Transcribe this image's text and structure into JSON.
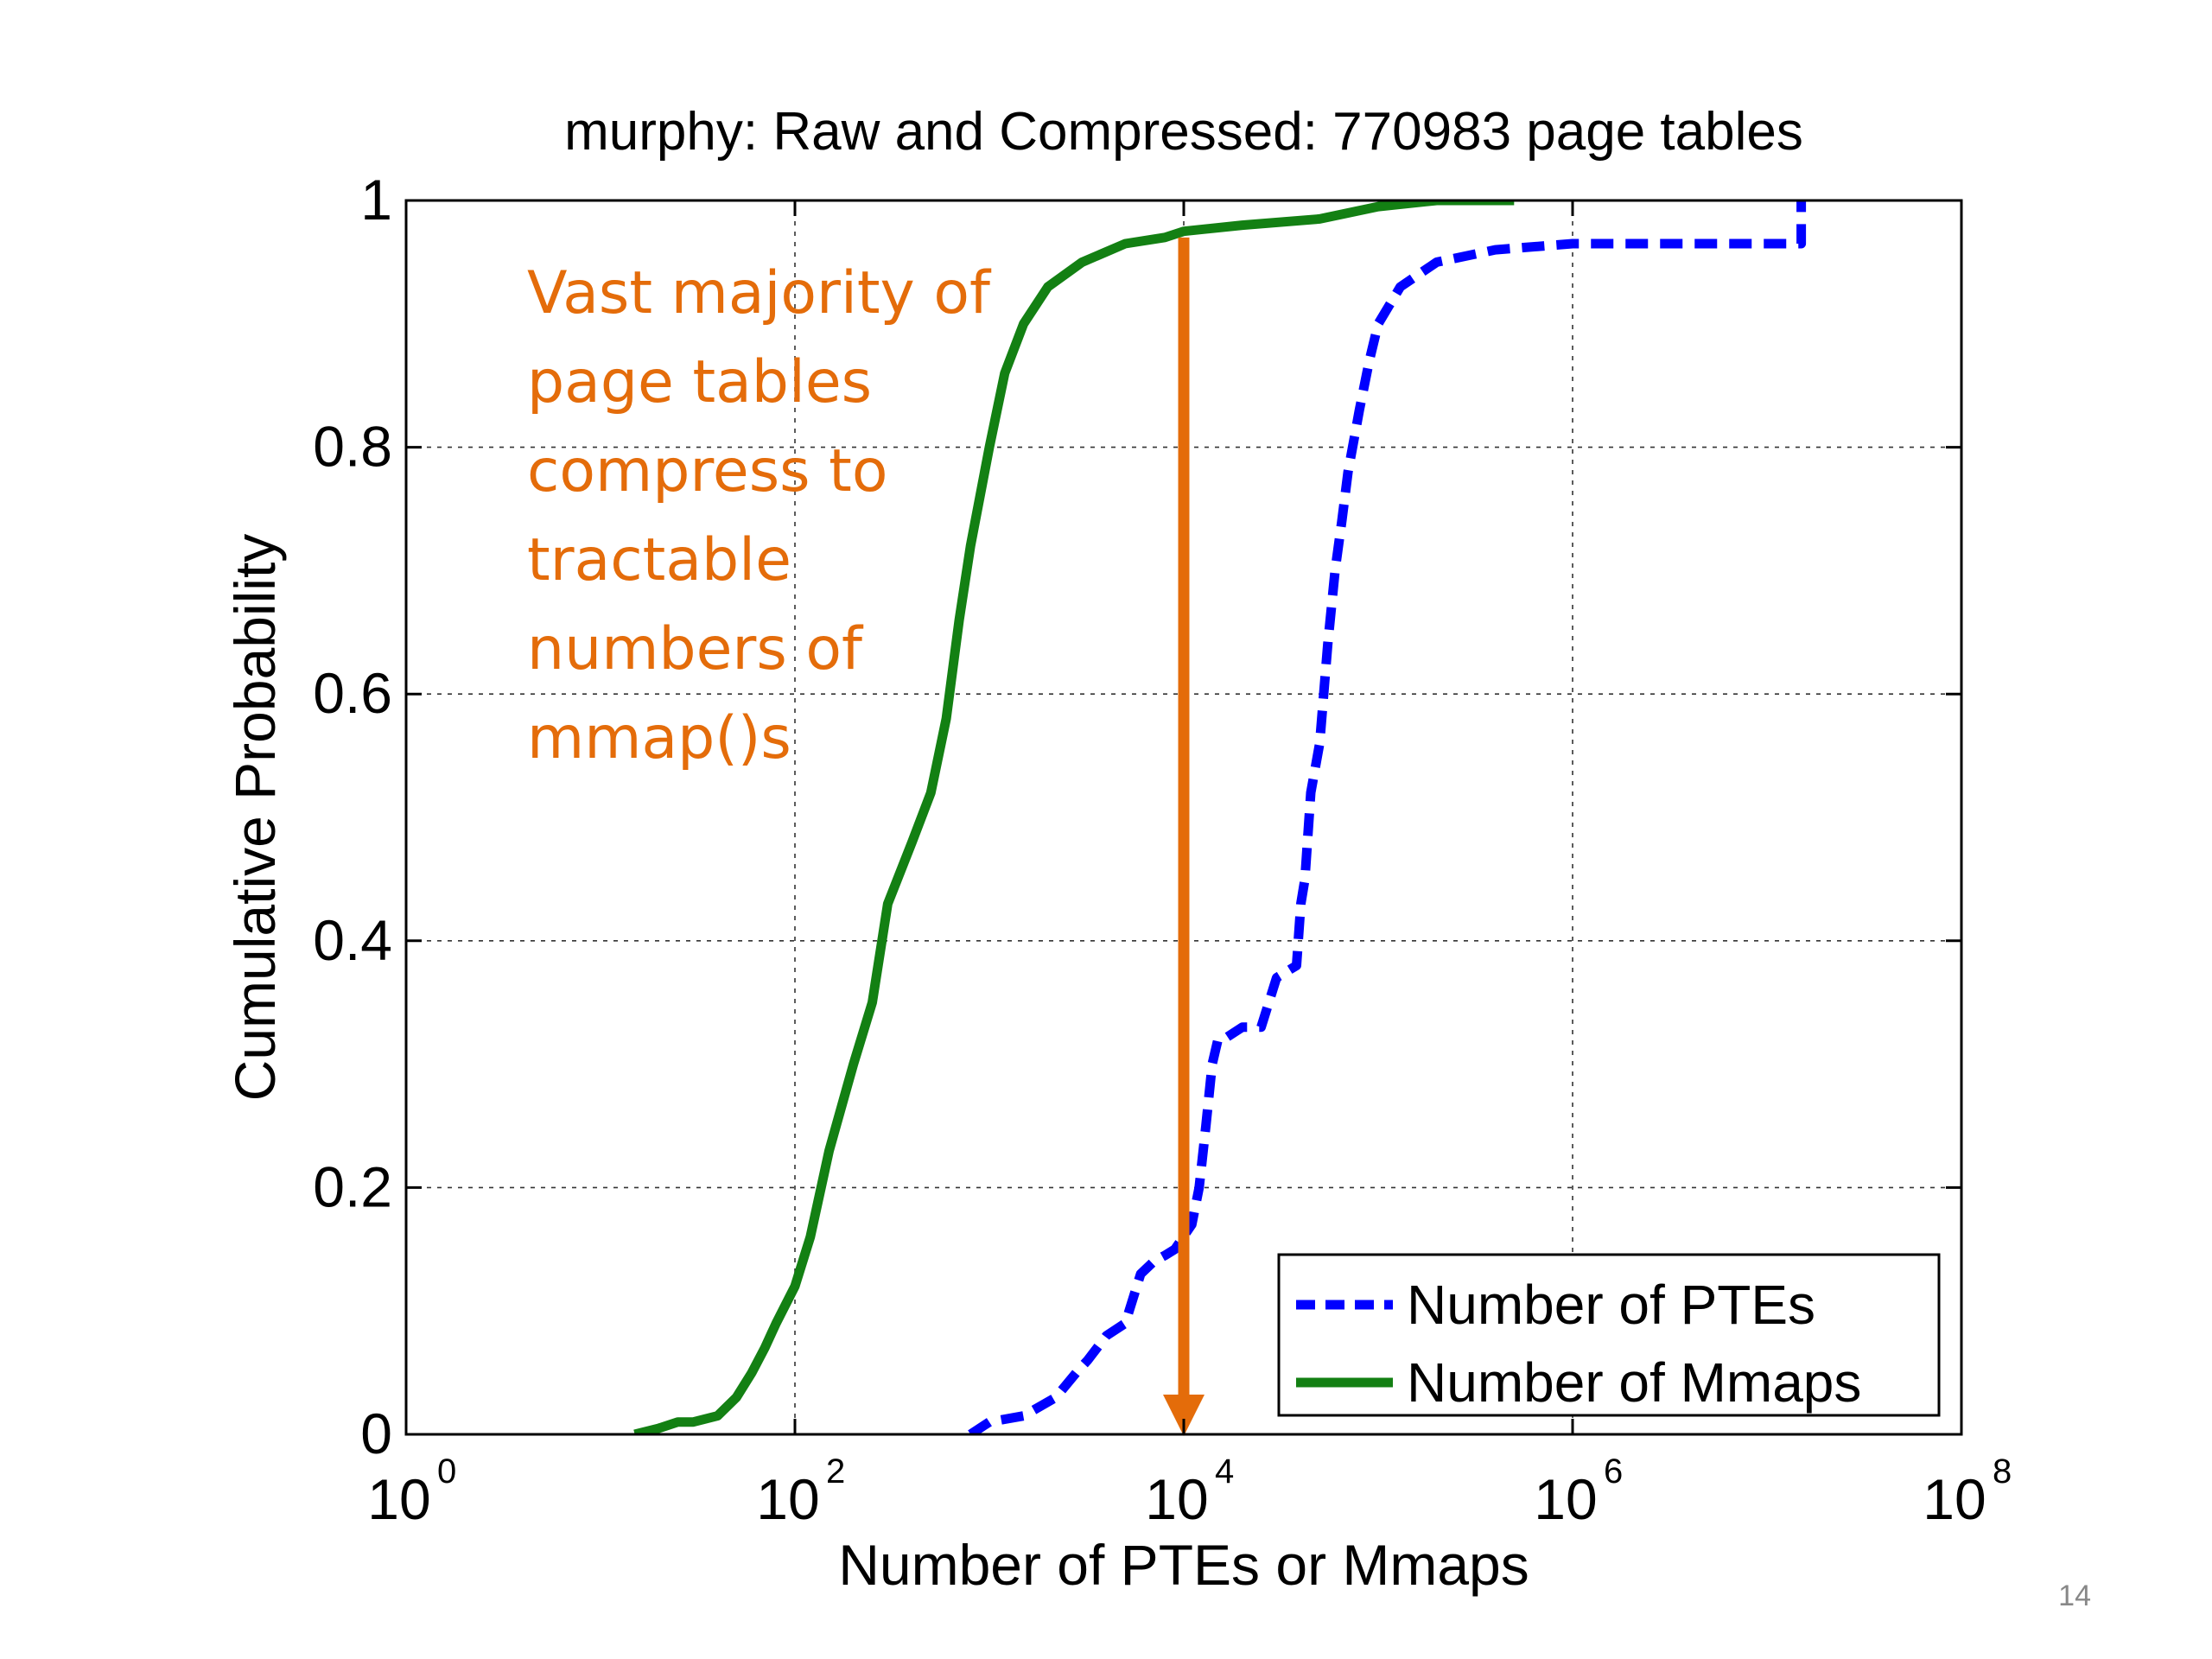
{
  "chart_data": {
    "type": "line",
    "title": "murphy: Raw and Compressed: 770983 page tables",
    "xlabel": "Number of PTEs or Mmaps",
    "ylabel": "Cumulative Probability",
    "x_scale": "log",
    "xlim": [
      1,
      100000000
    ],
    "ylim": [
      0,
      1
    ],
    "grid": true,
    "legend_position": "bottom-right",
    "x_ticks": [
      {
        "base": "10",
        "exp": "0"
      },
      {
        "base": "10",
        "exp": "2"
      },
      {
        "base": "10",
        "exp": "4"
      },
      {
        "base": "10",
        "exp": "6"
      },
      {
        "base": "10",
        "exp": "8"
      }
    ],
    "y_ticks": [
      "0",
      "0.2",
      "0.4",
      "0.6",
      "0.8",
      "1"
    ],
    "series": [
      {
        "name": "Number of PTEs",
        "color": "#0000ff",
        "style": "dashed",
        "x": [
          800,
          1000,
          1500,
          2200,
          2800,
          3200,
          4000,
          5000,
          6000,
          7000,
          8000,
          9000,
          11000,
          12000,
          13000,
          14000,
          15000,
          16000,
          20000,
          25000,
          30000,
          38000,
          40000,
          42000,
          45000,
          50000,
          55000,
          60000,
          65000,
          70000,
          80000,
          90000,
          100000,
          130000,
          200000,
          400000,
          1000000,
          5000000,
          15000000,
          15000000
        ],
        "y": [
          0.0,
          0.01,
          0.015,
          0.03,
          0.05,
          0.06,
          0.08,
          0.09,
          0.13,
          0.14,
          0.145,
          0.15,
          0.17,
          0.2,
          0.25,
          0.3,
          0.32,
          0.32,
          0.33,
          0.33,
          0.37,
          0.38,
          0.43,
          0.45,
          0.52,
          0.56,
          0.64,
          0.7,
          0.74,
          0.78,
          0.83,
          0.87,
          0.9,
          0.93,
          0.95,
          0.96,
          0.965,
          0.965,
          0.965,
          1.0
        ]
      },
      {
        "name": "Number of Mmaps",
        "color": "#138013",
        "style": "solid",
        "x": [
          15,
          20,
          25,
          30,
          40,
          50,
          60,
          70,
          80,
          100,
          120,
          150,
          200,
          250,
          300,
          400,
          500,
          600,
          700,
          800,
          1000,
          1200,
          1500,
          2000,
          3000,
          5000,
          8000,
          10000,
          20000,
          50000,
          100000,
          200000,
          500000
        ],
        "y": [
          0.0,
          0.005,
          0.01,
          0.01,
          0.015,
          0.03,
          0.05,
          0.07,
          0.09,
          0.12,
          0.16,
          0.23,
          0.3,
          0.35,
          0.43,
          0.48,
          0.52,
          0.58,
          0.66,
          0.72,
          0.8,
          0.86,
          0.9,
          0.93,
          0.95,
          0.965,
          0.97,
          0.975,
          0.98,
          0.985,
          0.995,
          1.0,
          1.0
        ]
      }
    ],
    "annotation": {
      "lines": [
        "Vast majority of",
        "page tables",
        "compress to",
        "tractable",
        "numbers of",
        "mmap()s"
      ],
      "color": "#e46c0a",
      "arrow_x": 10000,
      "arrow_from_y": 0.97,
      "arrow_to_y": 0.0
    }
  },
  "page_number": "14"
}
